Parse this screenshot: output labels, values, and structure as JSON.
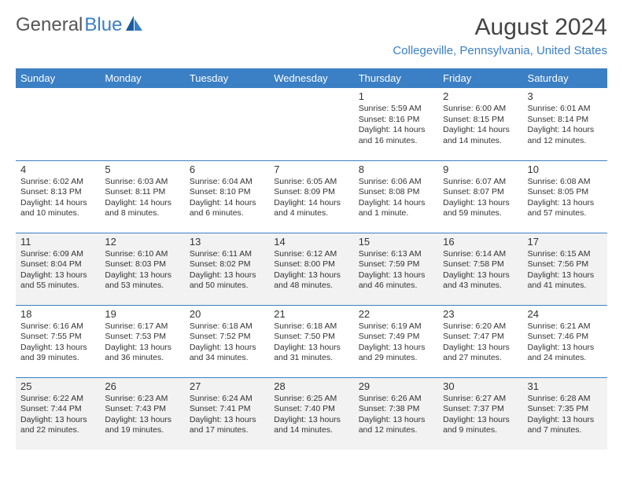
{
  "logo": {
    "text1": "General",
    "text2": "Blue"
  },
  "title": "August 2024",
  "location": "Collegeville, Pennsylvania, United States",
  "colors": {
    "header_bg": "#3b7fc4",
    "header_fg": "#ffffff",
    "rule": "#3b7fc4",
    "shade": "#f2f2f2",
    "text": "#333333"
  },
  "dayHeaders": [
    "Sunday",
    "Monday",
    "Tuesday",
    "Wednesday",
    "Thursday",
    "Friday",
    "Saturday"
  ],
  "weeks": [
    [
      null,
      null,
      null,
      null,
      {
        "d": "1",
        "sr": "Sunrise: 5:59 AM",
        "ss": "Sunset: 8:16 PM",
        "dl1": "Daylight: 14 hours",
        "dl2": "and 16 minutes."
      },
      {
        "d": "2",
        "sr": "Sunrise: 6:00 AM",
        "ss": "Sunset: 8:15 PM",
        "dl1": "Daylight: 14 hours",
        "dl2": "and 14 minutes."
      },
      {
        "d": "3",
        "sr": "Sunrise: 6:01 AM",
        "ss": "Sunset: 8:14 PM",
        "dl1": "Daylight: 14 hours",
        "dl2": "and 12 minutes."
      }
    ],
    [
      {
        "d": "4",
        "sr": "Sunrise: 6:02 AM",
        "ss": "Sunset: 8:13 PM",
        "dl1": "Daylight: 14 hours",
        "dl2": "and 10 minutes."
      },
      {
        "d": "5",
        "sr": "Sunrise: 6:03 AM",
        "ss": "Sunset: 8:11 PM",
        "dl1": "Daylight: 14 hours",
        "dl2": "and 8 minutes."
      },
      {
        "d": "6",
        "sr": "Sunrise: 6:04 AM",
        "ss": "Sunset: 8:10 PM",
        "dl1": "Daylight: 14 hours",
        "dl2": "and 6 minutes."
      },
      {
        "d": "7",
        "sr": "Sunrise: 6:05 AM",
        "ss": "Sunset: 8:09 PM",
        "dl1": "Daylight: 14 hours",
        "dl2": "and 4 minutes."
      },
      {
        "d": "8",
        "sr": "Sunrise: 6:06 AM",
        "ss": "Sunset: 8:08 PM",
        "dl1": "Daylight: 14 hours",
        "dl2": "and 1 minute."
      },
      {
        "d": "9",
        "sr": "Sunrise: 6:07 AM",
        "ss": "Sunset: 8:07 PM",
        "dl1": "Daylight: 13 hours",
        "dl2": "and 59 minutes."
      },
      {
        "d": "10",
        "sr": "Sunrise: 6:08 AM",
        "ss": "Sunset: 8:05 PM",
        "dl1": "Daylight: 13 hours",
        "dl2": "and 57 minutes."
      }
    ],
    [
      {
        "d": "11",
        "sr": "Sunrise: 6:09 AM",
        "ss": "Sunset: 8:04 PM",
        "dl1": "Daylight: 13 hours",
        "dl2": "and 55 minutes."
      },
      {
        "d": "12",
        "sr": "Sunrise: 6:10 AM",
        "ss": "Sunset: 8:03 PM",
        "dl1": "Daylight: 13 hours",
        "dl2": "and 53 minutes."
      },
      {
        "d": "13",
        "sr": "Sunrise: 6:11 AM",
        "ss": "Sunset: 8:02 PM",
        "dl1": "Daylight: 13 hours",
        "dl2": "and 50 minutes."
      },
      {
        "d": "14",
        "sr": "Sunrise: 6:12 AM",
        "ss": "Sunset: 8:00 PM",
        "dl1": "Daylight: 13 hours",
        "dl2": "and 48 minutes."
      },
      {
        "d": "15",
        "sr": "Sunrise: 6:13 AM",
        "ss": "Sunset: 7:59 PM",
        "dl1": "Daylight: 13 hours",
        "dl2": "and 46 minutes."
      },
      {
        "d": "16",
        "sr": "Sunrise: 6:14 AM",
        "ss": "Sunset: 7:58 PM",
        "dl1": "Daylight: 13 hours",
        "dl2": "and 43 minutes."
      },
      {
        "d": "17",
        "sr": "Sunrise: 6:15 AM",
        "ss": "Sunset: 7:56 PM",
        "dl1": "Daylight: 13 hours",
        "dl2": "and 41 minutes."
      }
    ],
    [
      {
        "d": "18",
        "sr": "Sunrise: 6:16 AM",
        "ss": "Sunset: 7:55 PM",
        "dl1": "Daylight: 13 hours",
        "dl2": "and 39 minutes."
      },
      {
        "d": "19",
        "sr": "Sunrise: 6:17 AM",
        "ss": "Sunset: 7:53 PM",
        "dl1": "Daylight: 13 hours",
        "dl2": "and 36 minutes."
      },
      {
        "d": "20",
        "sr": "Sunrise: 6:18 AM",
        "ss": "Sunset: 7:52 PM",
        "dl1": "Daylight: 13 hours",
        "dl2": "and 34 minutes."
      },
      {
        "d": "21",
        "sr": "Sunrise: 6:18 AM",
        "ss": "Sunset: 7:50 PM",
        "dl1": "Daylight: 13 hours",
        "dl2": "and 31 minutes."
      },
      {
        "d": "22",
        "sr": "Sunrise: 6:19 AM",
        "ss": "Sunset: 7:49 PM",
        "dl1": "Daylight: 13 hours",
        "dl2": "and 29 minutes."
      },
      {
        "d": "23",
        "sr": "Sunrise: 6:20 AM",
        "ss": "Sunset: 7:47 PM",
        "dl1": "Daylight: 13 hours",
        "dl2": "and 27 minutes."
      },
      {
        "d": "24",
        "sr": "Sunrise: 6:21 AM",
        "ss": "Sunset: 7:46 PM",
        "dl1": "Daylight: 13 hours",
        "dl2": "and 24 minutes."
      }
    ],
    [
      {
        "d": "25",
        "sr": "Sunrise: 6:22 AM",
        "ss": "Sunset: 7:44 PM",
        "dl1": "Daylight: 13 hours",
        "dl2": "and 22 minutes."
      },
      {
        "d": "26",
        "sr": "Sunrise: 6:23 AM",
        "ss": "Sunset: 7:43 PM",
        "dl1": "Daylight: 13 hours",
        "dl2": "and 19 minutes."
      },
      {
        "d": "27",
        "sr": "Sunrise: 6:24 AM",
        "ss": "Sunset: 7:41 PM",
        "dl1": "Daylight: 13 hours",
        "dl2": "and 17 minutes."
      },
      {
        "d": "28",
        "sr": "Sunrise: 6:25 AM",
        "ss": "Sunset: 7:40 PM",
        "dl1": "Daylight: 13 hours",
        "dl2": "and 14 minutes."
      },
      {
        "d": "29",
        "sr": "Sunrise: 6:26 AM",
        "ss": "Sunset: 7:38 PM",
        "dl1": "Daylight: 13 hours",
        "dl2": "and 12 minutes."
      },
      {
        "d": "30",
        "sr": "Sunrise: 6:27 AM",
        "ss": "Sunset: 7:37 PM",
        "dl1": "Daylight: 13 hours",
        "dl2": "and 9 minutes."
      },
      {
        "d": "31",
        "sr": "Sunrise: 6:28 AM",
        "ss": "Sunset: 7:35 PM",
        "dl1": "Daylight: 13 hours",
        "dl2": "and 7 minutes."
      }
    ]
  ]
}
